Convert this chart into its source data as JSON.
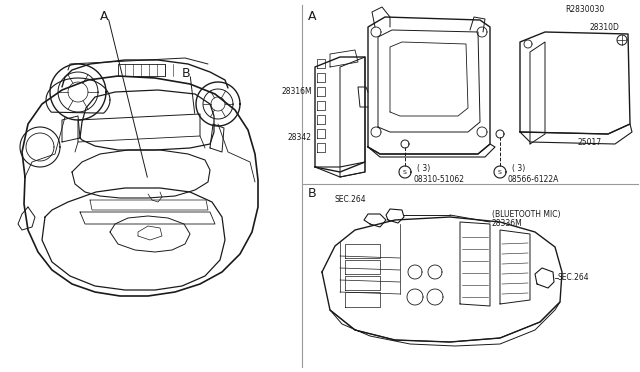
{
  "bg_color": "#ffffff",
  "line_color": "#1a1a1a",
  "divider_color": "#999999",
  "ref_code": "R2830030",
  "label_A": "A",
  "label_B": "B",
  "sec264": "SEC.264",
  "part_28336M": "28336M",
  "bluetooth_mic": "(BLUETOOTH MIC)",
  "part_28342": "28342",
  "part_28316M": "28316M",
  "bolt_08310": "08310-51062",
  "bolt_08310_qty": "( 3)",
  "bolt_08566": "08566-6122A",
  "bolt_08566_qty": "( 3)",
  "part_25017": "25017",
  "part_28310D": "28310D",
  "fs_tiny": 5.5,
  "fs_small": 6.5,
  "fs_label": 9
}
